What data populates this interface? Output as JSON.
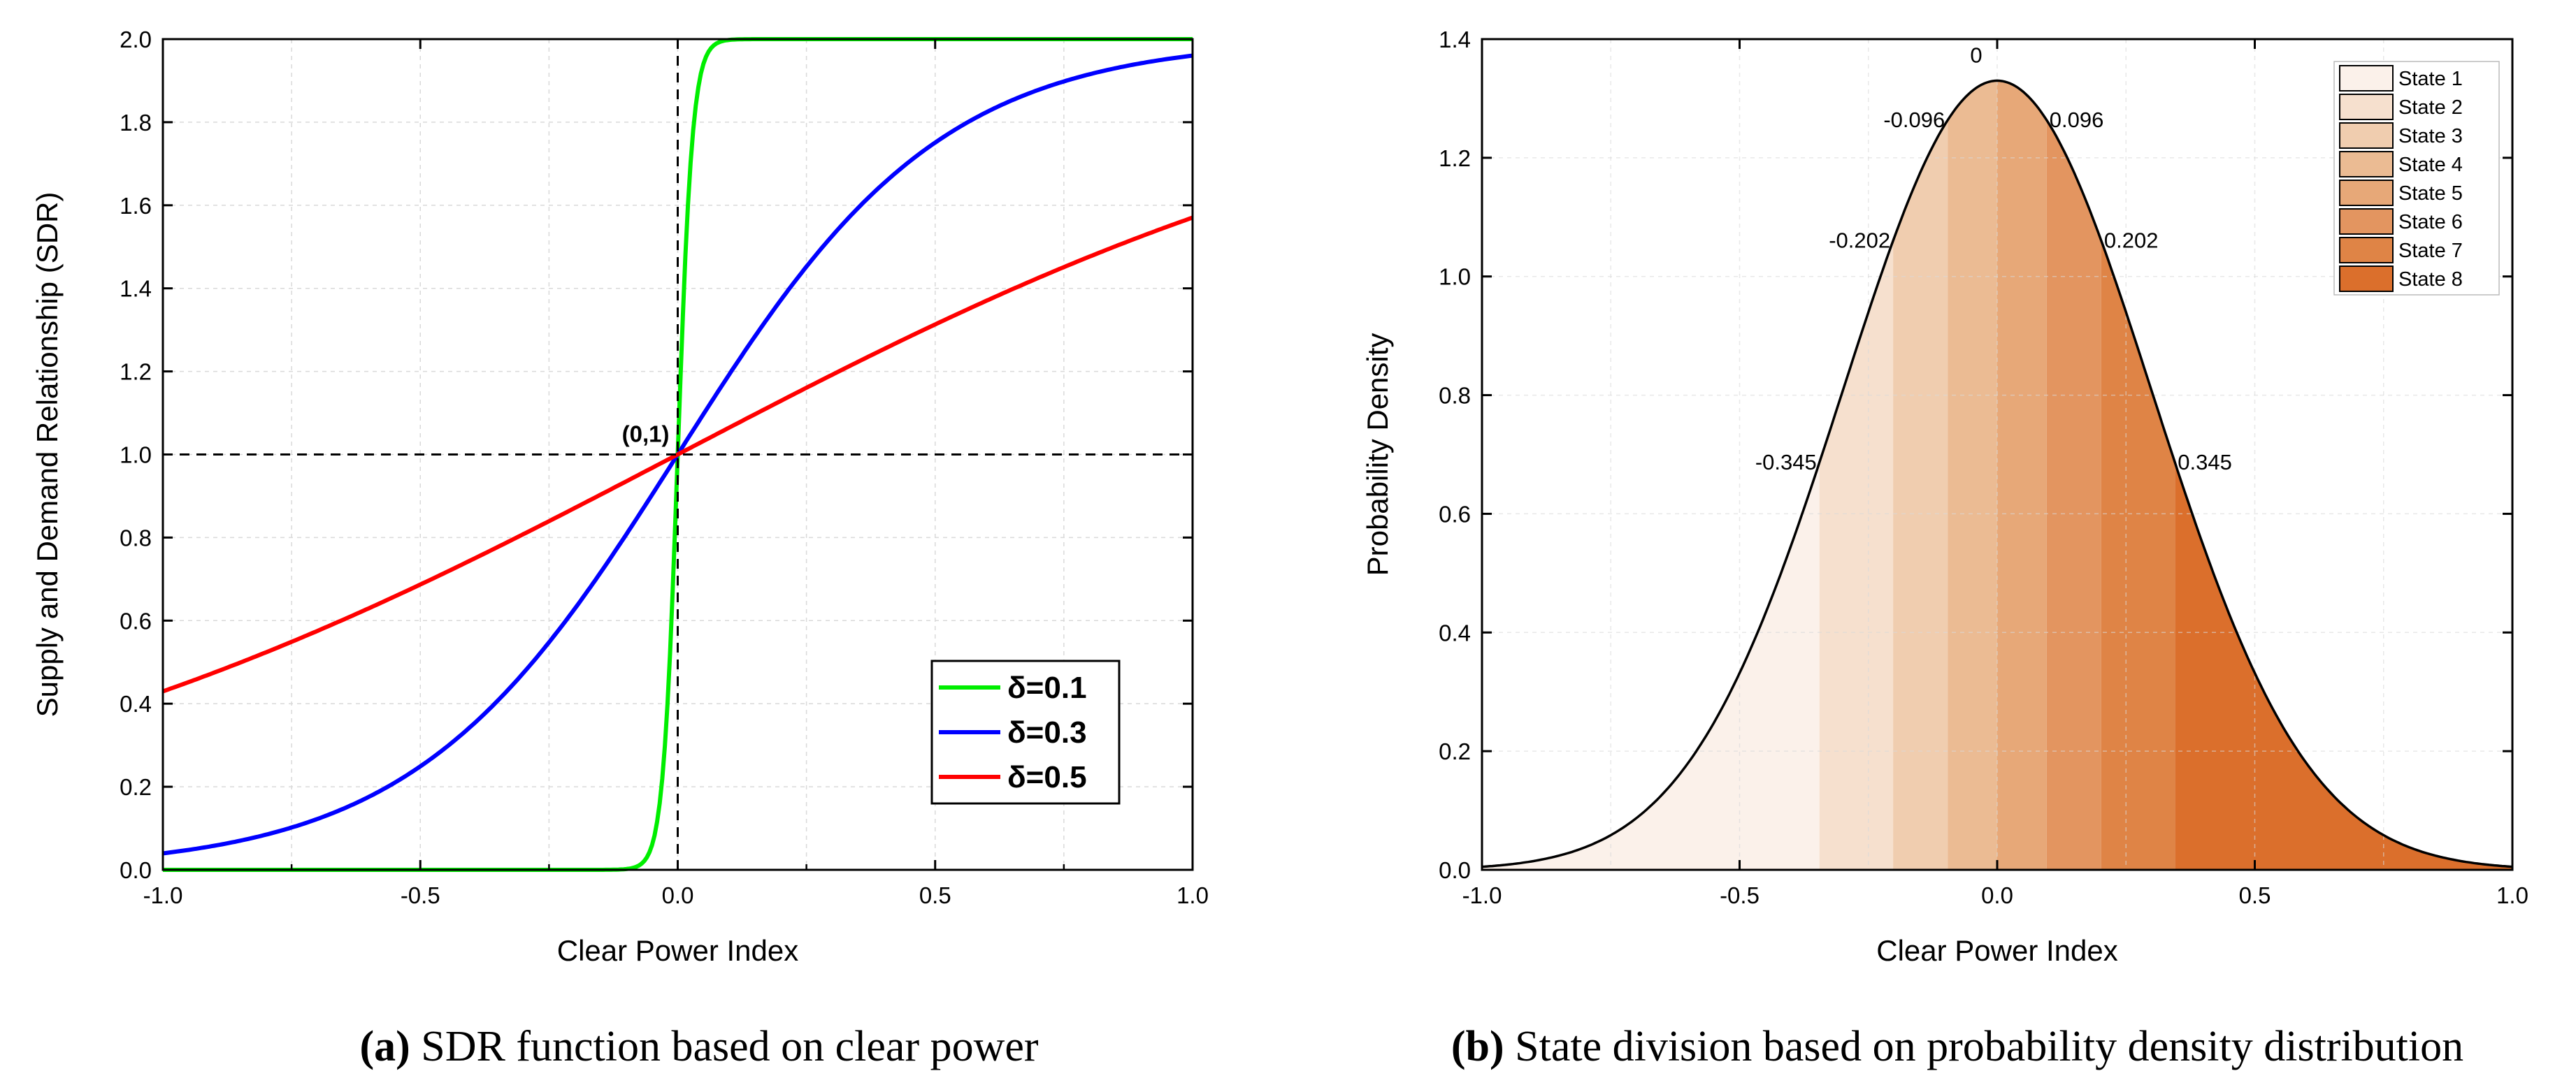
{
  "chart_data": [
    {
      "type": "line",
      "panel": "a",
      "xlabel": "Clear Power Index",
      "ylabel": "Supply and Demand Relationship (SDR)",
      "xlim": [
        -1.0,
        1.0
      ],
      "ylim": [
        0.0,
        2.0
      ],
      "x_ticks": [
        "-1.0",
        "-0.5",
        "0.0",
        "0.5",
        "1.0"
      ],
      "y_ticks": [
        "0.0",
        "0.2",
        "0.4",
        "0.6",
        "0.8",
        "1.0",
        "1.2",
        "1.4",
        "1.6",
        "1.8",
        "2.0"
      ],
      "grid": true,
      "legend_position": "bottom-right",
      "annotation": "(0,1)",
      "series": [
        {
          "name": "δ=0.1",
          "color": "#00ee00",
          "delta": 0.1
        },
        {
          "name": "δ=0.3",
          "color": "#0000ff",
          "delta": 0.3
        },
        {
          "name": "δ=0.5",
          "color": "#ff0000",
          "delta": 0.5
        }
      ],
      "caption_label": "(a)",
      "caption_text": " SDR function based on clear power"
    },
    {
      "type": "area",
      "panel": "b",
      "xlabel": "Clear Power Index",
      "ylabel": "Probability Density",
      "xlim": [
        -1.0,
        1.0
      ],
      "ylim": [
        0.0,
        1.4
      ],
      "x_ticks": [
        "-1.0",
        "-0.5",
        "0.0",
        "0.5",
        "1.0"
      ],
      "y_ticks": [
        "0.0",
        "0.2",
        "0.4",
        "0.6",
        "0.8",
        "1.0",
        "1.2",
        "1.4"
      ],
      "grid": true,
      "legend_position": "top-right",
      "peak_density": 1.33,
      "sigma": 0.3,
      "boundaries": [
        -1.0,
        -0.345,
        -0.202,
        -0.096,
        0.0,
        0.096,
        0.202,
        0.345,
        1.0
      ],
      "boundary_labels": [
        "-0.345",
        "-0.202",
        "-0.096",
        "0",
        "0.096",
        "0.202",
        "0.345"
      ],
      "boundary_values": [
        -0.345,
        -0.202,
        -0.096,
        0.0,
        0.096,
        0.202,
        0.345
      ],
      "states": [
        {
          "name": "State 1",
          "color": "#fbf1ea"
        },
        {
          "name": "State 2",
          "color": "#f6e0ce"
        },
        {
          "name": "State 3",
          "color": "#f0cdaf"
        },
        {
          "name": "State 4",
          "color": "#ebbb93"
        },
        {
          "name": "State 5",
          "color": "#e7a878"
        },
        {
          "name": "State 6",
          "color": "#e39560"
        },
        {
          "name": "State 7",
          "color": "#df8446"
        },
        {
          "name": "State 8",
          "color": "#db6f2c"
        }
      ],
      "caption_label": "(b)",
      "caption_text": " State division based on probability density distribution"
    }
  ]
}
